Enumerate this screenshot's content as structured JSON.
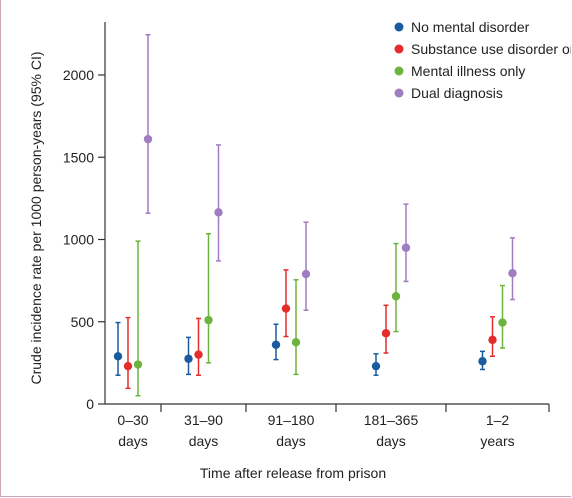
{
  "chart_data": {
    "type": "scatter",
    "title": "",
    "xlabel": "Time after release from prison",
    "ylabel": "Crude incidence rate per 1000 person-years (95% CI)",
    "ylim": [
      0,
      2300
    ],
    "yticks": [
      0,
      500,
      1000,
      1500,
      2000
    ],
    "categories": [
      [
        "0–30",
        "days"
      ],
      [
        "31–90",
        "days"
      ],
      [
        "91–180",
        "days"
      ],
      [
        "181–365",
        "days"
      ],
      [
        "1–2",
        "years"
      ]
    ],
    "legend_position": "top-right",
    "grid": false,
    "series": [
      {
        "name": "No mental disorder",
        "color": "#1a5a9e",
        "values": [
          290,
          275,
          360,
          230,
          260
        ],
        "lower": [
          175,
          180,
          270,
          175,
          210
        ],
        "upper": [
          495,
          405,
          485,
          305,
          320
        ]
      },
      {
        "name": "Substance use disorder only",
        "color": "#e32d2d",
        "values": [
          230,
          300,
          580,
          430,
          390
        ],
        "lower": [
          95,
          175,
          410,
          310,
          290
        ],
        "upper": [
          525,
          520,
          815,
          600,
          530
        ]
      },
      {
        "name": "Mental illness only",
        "color": "#6cb33f",
        "values": [
          240,
          510,
          375,
          655,
          495
        ],
        "lower": [
          50,
          250,
          180,
          440,
          340
        ],
        "upper": [
          990,
          1035,
          755,
          975,
          720
        ]
      },
      {
        "name": "Dual diagnosis",
        "color": "#a07cc0",
        "values": [
          1610,
          1165,
          790,
          950,
          795
        ],
        "lower": [
          1160,
          870,
          570,
          745,
          635
        ],
        "upper": [
          2245,
          1575,
          1105,
          1215,
          1010
        ]
      }
    ]
  }
}
